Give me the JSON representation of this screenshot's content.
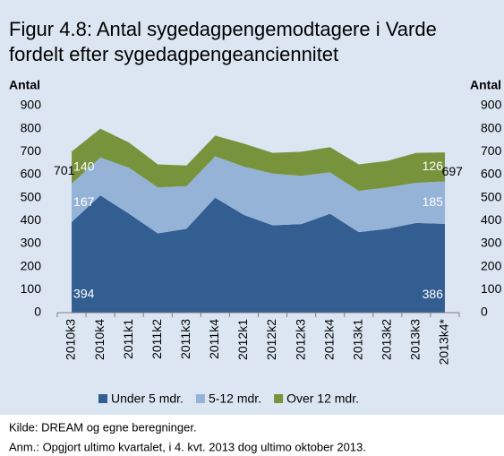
{
  "chart_data": {
    "type": "stacked_area",
    "title_lines": [
      "Figur 4.8: Antal sygedagpengemodtagere i Varde",
      "fordelt efter sygedagpengeanciennitet"
    ],
    "y_label": "Antal",
    "y2_label": "Antal",
    "categories": [
      "2010k3",
      "2010k4",
      "2011k1",
      "2011k2",
      "2011k3",
      "2011k4",
      "2012k1",
      "2012k2",
      "2012k3",
      "2012k4",
      "2013k1",
      "2013k2",
      "2013k3",
      "2013k4*"
    ],
    "series": [
      {
        "name": "Under 5 mdr.",
        "color": "#335e91",
        "values": [
          394,
          510,
          430,
          345,
          365,
          500,
          425,
          380,
          385,
          430,
          350,
          365,
          390,
          386
        ]
      },
      {
        "name": "5-12 mdr.",
        "color": "#95b3d7",
        "values": [
          167,
          165,
          200,
          200,
          185,
          180,
          210,
          225,
          210,
          180,
          180,
          180,
          175,
          185
        ]
      },
      {
        "name": "Over 12 mdr.",
        "color": "#77933c",
        "values": [
          140,
          125,
          110,
          100,
          90,
          90,
          100,
          90,
          105,
          110,
          115,
          115,
          130,
          126
        ]
      }
    ],
    "totals": [
      701,
      null,
      null,
      null,
      null,
      null,
      null,
      null,
      null,
      null,
      null,
      null,
      null,
      697
    ],
    "ylim": [
      0,
      900
    ],
    "yticks": [
      0,
      100,
      200,
      300,
      400,
      500,
      600,
      700,
      800,
      900
    ],
    "y2lim": [
      0,
      900
    ],
    "y2ticks": [
      0,
      100,
      200,
      300,
      400,
      500,
      600,
      700,
      800,
      900
    ],
    "legend": "bottom",
    "footnotes": [
      "Kilde: DREAM og egne beregninger.",
      "Anm.: Opgjort ultimo kvartalet, i 4. kvt. 2013 dog ultimo oktober 2013."
    ]
  }
}
